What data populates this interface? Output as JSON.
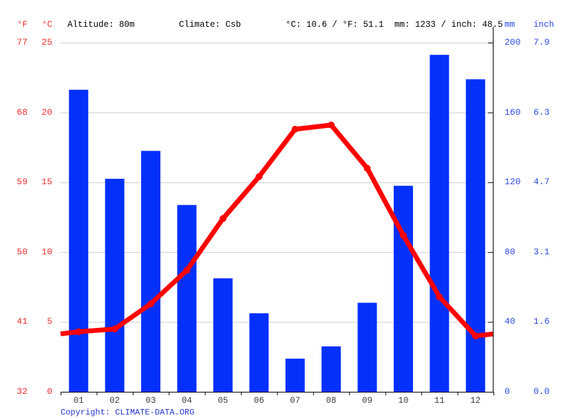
{
  "header": {
    "f_label": "°F",
    "c_label": "°C",
    "altitude": "Altitude: 80m",
    "climate": "Climate: Csb",
    "avg_temp": "°C: 10.6 / °F: 51.1",
    "precip_total": "mm: 1233 / inch: 48.5",
    "mm_label": "mm",
    "inch_label": "inch"
  },
  "footer": {
    "copyright": "Copyright: CLIMATE-DATA.ORG"
  },
  "colors": {
    "bar": "#0330fb",
    "line": "#ff0000",
    "red_label": "#ef2e2e",
    "blue_label": "#2a4ae4",
    "copyright": "#2233cc",
    "grid": "#cccccc",
    "axis": "#000000",
    "month_label": "#3c3c3c"
  },
  "chart_data": {
    "type": "bar+line climograph",
    "categories": [
      "01",
      "02",
      "03",
      "04",
      "05",
      "06",
      "07",
      "08",
      "09",
      "10",
      "11",
      "12"
    ],
    "series": [
      {
        "name": "precipitation",
        "type": "bar",
        "unit": "mm",
        "color": "#0330fb",
        "values": [
          173,
          122,
          138,
          107,
          65,
          45,
          19,
          26,
          51,
          118,
          193,
          179
        ]
      },
      {
        "name": "temperature",
        "type": "line",
        "unit": "°C",
        "color": "#ff0000",
        "values": [
          4.3,
          4.5,
          6.3,
          8.7,
          12.4,
          15.4,
          18.8,
          19.1,
          16.0,
          11.2,
          6.8,
          4.0
        ]
      }
    ],
    "y_left": {
      "labels_f": [
        "77",
        "68",
        "59",
        "50",
        "41",
        "32"
      ],
      "labels_c": [
        "25",
        "20",
        "15",
        "10",
        "5",
        "0"
      ],
      "c_ticks": [
        25,
        20,
        15,
        10,
        5,
        0
      ],
      "c_range": [
        0,
        25
      ]
    },
    "y_right": {
      "labels_mm": [
        "200",
        "160",
        "120",
        "80",
        "40",
        "0"
      ],
      "labels_inch": [
        "7.9",
        "6.3",
        "4.7",
        "3.1",
        "1.6",
        "0.0"
      ],
      "mm_ticks": [
        200,
        160,
        120,
        80,
        40,
        0
      ],
      "mm_range": [
        0,
        200
      ]
    },
    "grid": true,
    "legend": "none",
    "line_extends_to_plot_edges": true
  }
}
